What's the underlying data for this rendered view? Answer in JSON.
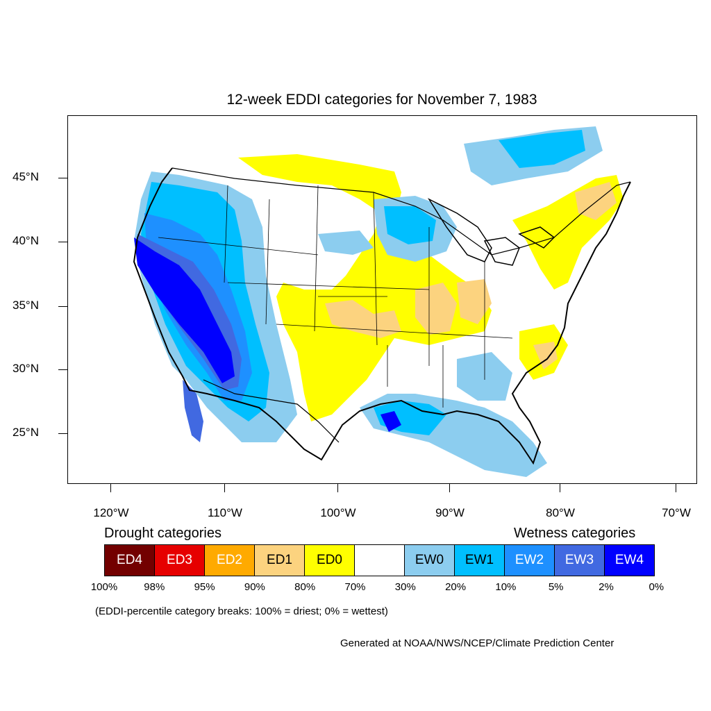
{
  "title": "12-week EDDI categories for November 7, 1983",
  "map": {
    "lat_labels": [
      "45°N",
      "40°N",
      "35°N",
      "30°N",
      "25°N"
    ],
    "lon_labels": [
      "120°W",
      "110°W",
      "100°W",
      "90°W",
      "80°W",
      "70°W"
    ]
  },
  "legend": {
    "drought_heading": "Drought categories",
    "wetness_heading": "Wetness categories",
    "categories": [
      {
        "label": "ED4",
        "color": "#730000",
        "text_color": "#ffffff"
      },
      {
        "label": "ED3",
        "color": "#e60000",
        "text_color": "#ffffff"
      },
      {
        "label": "ED2",
        "color": "#ffaa00",
        "text_color": "#ffffff"
      },
      {
        "label": "ED1",
        "color": "#fcd37f",
        "text_color": "#000000"
      },
      {
        "label": "ED0",
        "color": "#ffff00",
        "text_color": "#000000"
      },
      {
        "label": "",
        "color": "#ffffff",
        "text_color": "#000000"
      },
      {
        "label": "EW0",
        "color": "#8ccdef",
        "text_color": "#000000"
      },
      {
        "label": "EW1",
        "color": "#00bfff",
        "text_color": "#000000"
      },
      {
        "label": "EW2",
        "color": "#1e90ff",
        "text_color": "#ffffff"
      },
      {
        "label": "EW3",
        "color": "#4169e1",
        "text_color": "#ffffff"
      },
      {
        "label": "EW4",
        "color": "#0000ff",
        "text_color": "#ffffff"
      }
    ],
    "breaks": [
      "100%",
      "98%",
      "95%",
      "90%",
      "80%",
      "70%",
      "30%",
      "20%",
      "10%",
      "5%",
      "2%",
      "0%"
    ],
    "note": "(EDDI-percentile category breaks: 100% = driest; 0% = wettest)"
  },
  "credit": "Generated at NOAA/NWS/NCEP/Climate Prediction Center"
}
